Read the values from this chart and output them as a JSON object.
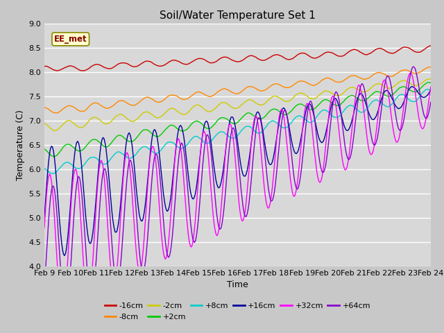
{
  "title": "Soil/Water Temperature Set 1",
  "xlabel": "Time",
  "ylabel": "Temperature (C)",
  "ylim": [
    4.0,
    9.0
  ],
  "yticks": [
    4.0,
    4.5,
    5.0,
    5.5,
    6.0,
    6.5,
    7.0,
    7.5,
    8.0,
    8.5,
    9.0
  ],
  "xtick_labels": [
    "Feb 9",
    "Feb 10",
    "Feb 11",
    "Feb 12",
    "Feb 13",
    "Feb 14",
    "Feb 15",
    "Feb 16",
    "Feb 17",
    "Feb 18",
    "Feb 19",
    "Feb 20",
    "Feb 21",
    "Feb 22",
    "Feb 23",
    "Feb 24"
  ],
  "annotation_text": "EE_met",
  "annotation_box_color": "#ffffcc",
  "annotation_text_color": "#880000",
  "fig_bg_color": "#c8c8c8",
  "plot_bg_color": "#d8d8d8",
  "series": [
    {
      "label": "-16cm",
      "color": "#cc0000"
    },
    {
      "label": "-8cm",
      "color": "#ff8800"
    },
    {
      "label": "-2cm",
      "color": "#cccc00"
    },
    {
      "label": "+2cm",
      "color": "#00cc00"
    },
    {
      "label": "+8cm",
      "color": "#00cccc"
    },
    {
      "label": "+16cm",
      "color": "#000099"
    },
    {
      "label": "+32cm",
      "color": "#ff00ff"
    },
    {
      "label": "+64cm",
      "color": "#8800cc"
    }
  ]
}
